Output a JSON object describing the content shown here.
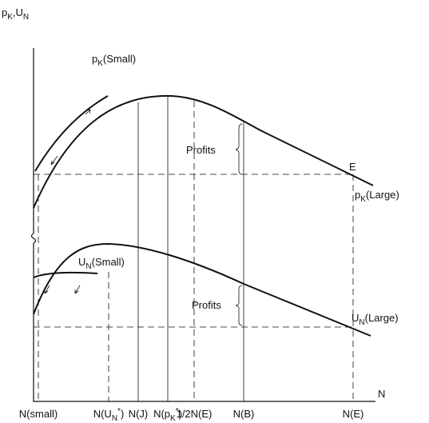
{
  "axis_labels": {
    "y": [
      {
        "text": "p"
      },
      {
        "text": "K",
        "sub": true
      },
      {
        "text": ",U"
      },
      {
        "text": "N",
        "sub": true
      }
    ],
    "x": "N"
  },
  "curve_labels": {
    "pk_small": [
      {
        "text": "p"
      },
      {
        "text": "K",
        "sub": true
      },
      {
        "text": "(Small)"
      }
    ],
    "pk_large": [
      {
        "text": "p"
      },
      {
        "text": "K",
        "sub": true
      },
      {
        "text": "(Large)"
      }
    ],
    "un_small": [
      {
        "text": "U"
      },
      {
        "text": "N",
        "sub": true
      },
      {
        "text": "(Small)"
      }
    ],
    "un_large": [
      {
        "text": "U"
      },
      {
        "text": "N",
        "sub": true
      },
      {
        "text": "(Large)"
      }
    ]
  },
  "profits": [
    "Profits",
    "Profits"
  ],
  "point_label": "E",
  "x_labels": [
    [
      {
        "text": "N(small)"
      }
    ],
    [
      {
        "text": "N(U"
      },
      {
        "text": "N",
        "sub": true
      },
      {
        "text": "*",
        "sup": true
      },
      {
        "text": ")"
      }
    ],
    [
      {
        "text": "N(J)"
      }
    ],
    [
      {
        "text": "N(p"
      },
      {
        "text": "K",
        "sub": true
      },
      {
        "text": "*",
        "sup": true
      },
      {
        "text": ")"
      }
    ],
    [
      {
        "text": "1/2N(E)"
      }
    ],
    [
      {
        "text": "N(B)"
      }
    ],
    [
      {
        "text": "N(E)"
      }
    ]
  ]
}
